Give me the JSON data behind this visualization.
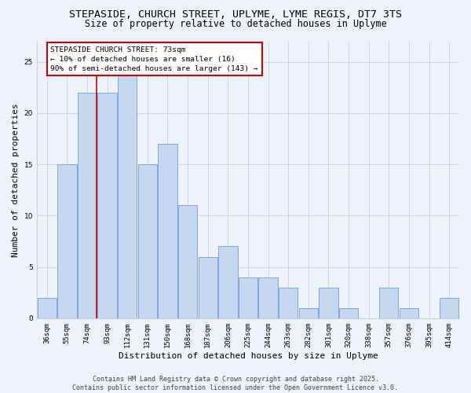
{
  "title_line1": "STEPASIDE, CHURCH STREET, UPLYME, LYME REGIS, DT7 3TS",
  "title_line2": "Size of property relative to detached houses in Uplyme",
  "xlabel": "Distribution of detached houses by size in Uplyme",
  "ylabel": "Number of detached properties",
  "categories": [
    "36sqm",
    "55sqm",
    "74sqm",
    "93sqm",
    "112sqm",
    "131sqm",
    "150sqm",
    "168sqm",
    "187sqm",
    "206sqm",
    "225sqm",
    "244sqm",
    "263sqm",
    "282sqm",
    "301sqm",
    "320sqm",
    "338sqm",
    "357sqm",
    "376sqm",
    "395sqm",
    "414sqm"
  ],
  "values": [
    2,
    15,
    22,
    22,
    25,
    15,
    17,
    11,
    6,
    7,
    4,
    4,
    3,
    1,
    3,
    1,
    0,
    3,
    1,
    0,
    2
  ],
  "bar_color": "#c5d8f0",
  "bar_edge_color": "#6a9fd8",
  "red_line_color": "#cc0000",
  "annotation_text_line1": "STEPASIDE CHURCH STREET: 73sqm",
  "annotation_text_line2": "← 10% of detached houses are smaller (16)",
  "annotation_text_line3": "90% of semi-detached houses are larger (143) →",
  "annotation_box_color": "#ffffff",
  "annotation_box_edge": "#cc0000",
  "ylim": [
    0,
    27
  ],
  "yticks": [
    0,
    5,
    10,
    15,
    20,
    25
  ],
  "background_color": "#eef2fa",
  "grid_color": "#c8d0e0",
  "footer_text": "Contains HM Land Registry data © Crown copyright and database right 2025.\nContains public sector information licensed under the Open Government Licence v3.0.",
  "title_fontsize": 9.5,
  "subtitle_fontsize": 8.5,
  "axis_label_fontsize": 8,
  "tick_fontsize": 6.5,
  "annotation_fontsize": 6.8,
  "footer_fontsize": 6,
  "red_line_index": 2
}
